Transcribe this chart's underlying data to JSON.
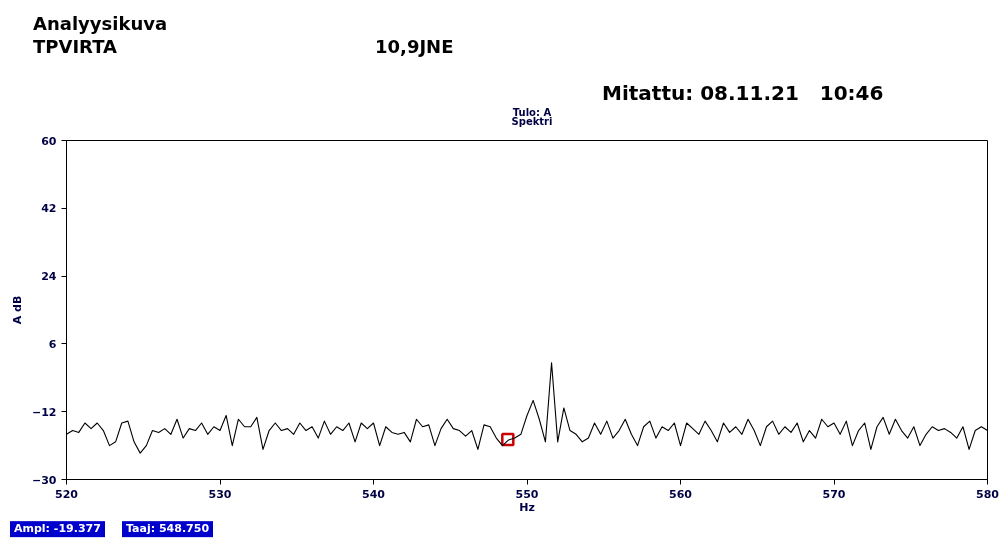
{
  "chart_data": {
    "type": "line",
    "title": "Analyysikuva",
    "xlabel": "Hz",
    "ylabel": "A dB",
    "annotations": [
      "TPVIRTA",
      "10,9JNE",
      "Mitattu: 08.11.21   10:46",
      "Tulo: A",
      "Spektri",
      "Ampl: -19.377",
      "Taaj: 548.750"
    ],
    "xlim": [
      520,
      580
    ],
    "ylim": [
      -30,
      60
    ],
    "xticks": [
      520,
      530,
      540,
      550,
      560,
      570,
      580
    ],
    "yticks": [
      -30,
      -12,
      6,
      24,
      42,
      60
    ],
    "grid": false,
    "series": [
      {
        "color": "#000000",
        "x": [
          520,
          520.4,
          520.8,
          521.2,
          521.6,
          522,
          522.4,
          522.8,
          523.2,
          523.6,
          524,
          524.4,
          524.8,
          525.2,
          525.6,
          526,
          526.4,
          526.8,
          527.2,
          527.6,
          528,
          528.4,
          528.8,
          529.2,
          529.6,
          530,
          530.4,
          530.8,
          531.2,
          531.6,
          532,
          532.4,
          532.8,
          533.2,
          533.6,
          534,
          534.4,
          534.8,
          535.2,
          535.6,
          536,
          536.4,
          536.8,
          537.2,
          537.6,
          538,
          538.4,
          538.8,
          539.2,
          539.6,
          540,
          540.4,
          540.8,
          541.2,
          541.6,
          542,
          542.4,
          542.8,
          543.2,
          543.6,
          544,
          544.4,
          544.8,
          545.2,
          545.6,
          546,
          546.4,
          546.8,
          547.2,
          547.6,
          548,
          548.4,
          548.8,
          549.2,
          549.6,
          550,
          550.4,
          550.8,
          551.2,
          551.6,
          552,
          552.4,
          552.8,
          553.2,
          553.6,
          554,
          554.4,
          554.8,
          555.2,
          555.6,
          556,
          556.4,
          556.8,
          557.2,
          557.6,
          558,
          558.4,
          558.8,
          559.2,
          559.6,
          560,
          560.4,
          560.8,
          561.2,
          561.6,
          562,
          562.4,
          562.8,
          563.2,
          563.6,
          564,
          564.4,
          564.8,
          565.2,
          565.6,
          566,
          566.4,
          566.8,
          567.2,
          567.6,
          568,
          568.4,
          568.8,
          569.2,
          569.6,
          570,
          570.4,
          570.8,
          571.2,
          571.6,
          572,
          572.4,
          572.8,
          573.2,
          573.6,
          574,
          574.4,
          574.8,
          575.2,
          575.6,
          576,
          576.4,
          576.8,
          577.2,
          577.6,
          578,
          578.4,
          578.8,
          579.2,
          579.6,
          580
        ],
        "values": [
          -18,
          -17,
          -17.5,
          -15,
          -16.5,
          -15,
          -17,
          -21,
          -20,
          -15,
          -14.5,
          -20,
          -23,
          -21,
          -17,
          -17.5,
          -16.5,
          -18,
          -14,
          -19,
          -16.5,
          -17,
          -15,
          -18,
          -16,
          -17,
          -13,
          -21,
          -14,
          -16,
          -16,
          -13.5,
          -22,
          -17,
          -15,
          -17,
          -16.5,
          -18,
          -15,
          -17,
          -16,
          -19,
          -14.5,
          -18,
          -16,
          -17,
          -15,
          -20,
          -15,
          -16.5,
          -15,
          -21,
          -16,
          -17.5,
          -18,
          -17.5,
          -20,
          -14,
          -16,
          -15.5,
          -21,
          -16.5,
          -14,
          -16.5,
          -17,
          -18.5,
          -17,
          -22,
          -15.5,
          -16,
          -19,
          -21,
          -19.5,
          -19,
          -18,
          -13,
          -9,
          -14,
          -20,
          1,
          -20,
          -11,
          -17,
          -18,
          -20,
          -19,
          -15,
          -18,
          -14.5,
          -19,
          -17,
          -14,
          -18,
          -21,
          -16,
          -14.5,
          -19,
          -16,
          -17,
          -15,
          -21,
          -15,
          -16.5,
          -18,
          -14.5,
          -17,
          -20,
          -15,
          -17.5,
          -16,
          -18,
          -14,
          -17,
          -21,
          -16,
          -14.5,
          -18,
          -16,
          -17.5,
          -15,
          -20,
          -17,
          -19,
          -14,
          -16,
          -15,
          -18,
          -14.5,
          -21,
          -17,
          -15,
          -22,
          -16,
          -13.5,
          -18,
          -14,
          -17,
          -19,
          -16,
          -21,
          -18,
          -16,
          -17,
          -16.5,
          -17.5,
          -19,
          -16,
          -22,
          -17,
          -16,
          -17
        ]
      },
      {
        "type": "scatter",
        "color": "#cc0000",
        "marker": "square",
        "x": [
          548.75
        ],
        "values": [
          -19.4
        ]
      }
    ]
  }
}
